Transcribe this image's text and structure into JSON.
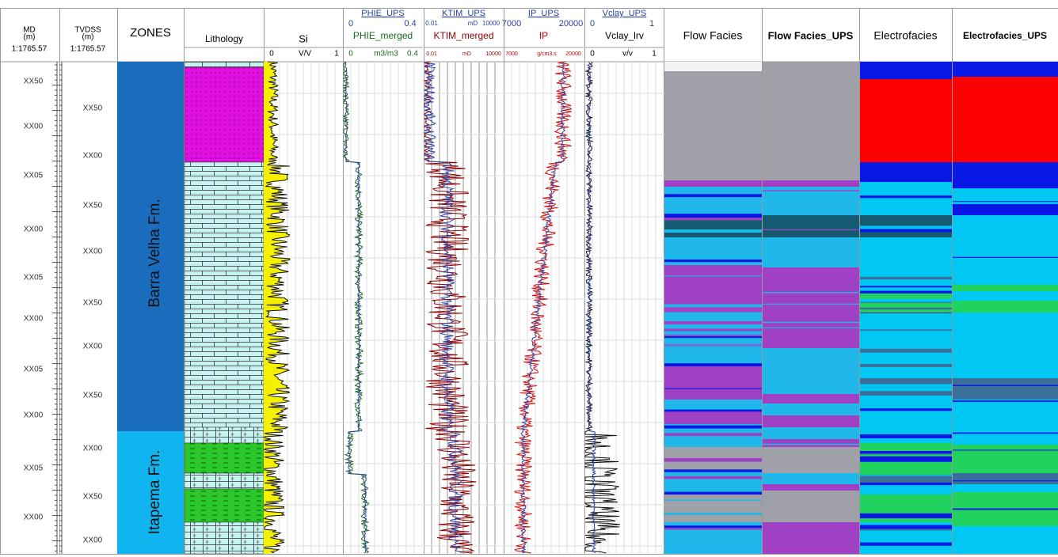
{
  "header": {
    "md": {
      "title": "MD",
      "unit": "(m)",
      "scale": "1:1765.57"
    },
    "tvdss": {
      "title": "TVDSS",
      "unit": "(m)",
      "scale": "1:1765.57"
    },
    "zones": "ZONES",
    "lithology": "Lithology",
    "si": {
      "title": "Si",
      "min": "0",
      "unit": "V/V",
      "max": "1"
    },
    "phie": {
      "ups": "PHIE_UPS",
      "ups_min": "0",
      "ups_max": "0.4",
      "title": "PHIE_merged",
      "min": "0",
      "unit": "m3/m3",
      "max": "0.4"
    },
    "ktim": {
      "ups": "KTIM_UPS",
      "ups_min": "0.01",
      "ups_unit": "mD",
      "ups_max": "10000",
      "title": "KTIM_merged",
      "min": "0.01",
      "unit": "mD",
      "max": "10000"
    },
    "ip": {
      "ups": "IP_UPS",
      "ups_min": "7000",
      "ups_max": "20000",
      "title": "IP",
      "min": "7000",
      "unit": "g/cm3.s",
      "max": "20000"
    },
    "vclay": {
      "ups": "Vclay_UPS",
      "ups_min": "0",
      "ups_max": "1",
      "title": "Vclay_lrv",
      "min": "0",
      "unit": "v/v",
      "max": "1"
    },
    "facies": [
      "Flow Facies",
      "Flow Facies_UPS",
      "Electrofacies",
      "Electrofacies_UPS"
    ]
  },
  "depth_labels": {
    "md": [
      "XX50",
      "XX00",
      "XX05",
      "XX00",
      "XX05",
      "XX00",
      "XX05",
      "XX00",
      "XX05",
      "XX00"
    ],
    "tvdss": [
      "XX50",
      "XX00",
      "XX50",
      "XX00",
      "XX50",
      "XX00",
      "XX50",
      "XX00",
      "XX50",
      "XX00"
    ]
  },
  "zones": [
    "Barra Velha Fm.",
    "Itapema Fm."
  ]
}
